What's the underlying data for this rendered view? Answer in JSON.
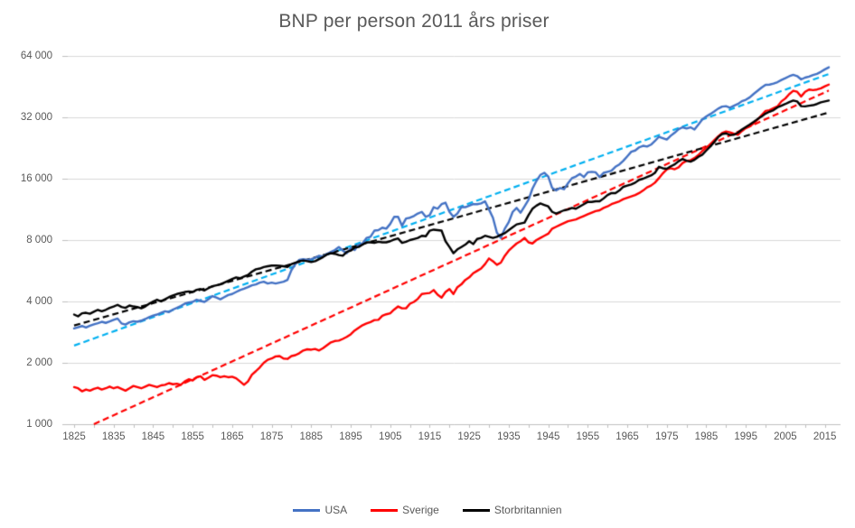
{
  "title": "BNP per person 2011 års priser",
  "legend": {
    "items": [
      {
        "label": "USA",
        "color": "#4472C4"
      },
      {
        "label": "Sverige",
        "color": "#FF0000"
      },
      {
        "label": "Storbritannien",
        "color": "#000000"
      }
    ]
  },
  "colors": {
    "gridline": "#D9D9D9",
    "axis": "#BFBFBF",
    "tick": "#BFBFBF",
    "text": "#595959",
    "usa": "#4472C4",
    "usa_trend": "#00B0F0",
    "sverige": "#FF0000",
    "sverige_trend": "#FF0000",
    "storbritannien": "#000000",
    "storbritannien_trend": "#000000"
  },
  "chart_data": {
    "type": "line",
    "title": "BNP per person 2011 års priser",
    "y_scale": "log2",
    "ylim": [
      1000,
      64000
    ],
    "x_range": [
      1825,
      2016
    ],
    "grid": "horizontal",
    "legend_position": "bottom",
    "y_ticks": [
      {
        "value": 64000,
        "label": "64 000"
      },
      {
        "value": 32000,
        "label": "32 000"
      },
      {
        "value": 16000,
        "label": "16 000"
      },
      {
        "value": 8000,
        "label": "8 000"
      },
      {
        "value": 4000,
        "label": "4 000"
      },
      {
        "value": 2000,
        "label": "2 000"
      },
      {
        "value": 1000,
        "label": "1 000"
      }
    ],
    "x_tick_labels": [
      "1825",
      "1835",
      "1845",
      "1855",
      "1865",
      "1875",
      "1885",
      "1895",
      "1905",
      "1915",
      "1925",
      "1935",
      "1945",
      "1955",
      "1965",
      "1975",
      "1985",
      "1995",
      "2005",
      "2015"
    ],
    "x_minor_tick_step": 5,
    "series": [
      {
        "name": "USA",
        "color": "#4472C4",
        "style": "solid",
        "x_start": 1825,
        "x_step": 1,
        "values": [
          2950,
          2990,
          3030,
          2980,
          3040,
          3090,
          3130,
          3180,
          3140,
          3190,
          3250,
          3300,
          3120,
          3080,
          3160,
          3200,
          3180,
          3220,
          3280,
          3350,
          3410,
          3450,
          3520,
          3580,
          3550,
          3650,
          3720,
          3800,
          3900,
          3950,
          3980,
          4080,
          4020,
          3980,
          4100,
          4250,
          4180,
          4100,
          4200,
          4300,
          4350,
          4450,
          4550,
          4620,
          4700,
          4800,
          4850,
          4950,
          5000,
          4900,
          4950,
          4900,
          4950,
          5000,
          5100,
          5700,
          6100,
          6400,
          6450,
          6400,
          6450,
          6550,
          6700,
          6650,
          6850,
          7000,
          7150,
          7400,
          7100,
          6900,
          7300,
          7150,
          7600,
          7700,
          8200,
          8300,
          8900,
          8950,
          9200,
          9100,
          9600,
          10400,
          10400,
          9400,
          10200,
          10300,
          10500,
          10800,
          11000,
          10400,
          10600,
          11600,
          11400,
          12000,
          12200,
          11000,
          10400,
          10800,
          11600,
          11600,
          11800,
          12000,
          12000,
          12100,
          12400,
          11300,
          10300,
          8700,
          8200,
          9100,
          9800,
          11000,
          11500,
          10900,
          11700,
          12600,
          14300,
          15600,
          16700,
          17100,
          16400,
          14400,
          14000,
          14400,
          14200,
          15200,
          16100,
          16400,
          16900,
          16300,
          17200,
          17300,
          17200,
          16300,
          17100,
          17300,
          17500,
          18300,
          18800,
          19600,
          20600,
          21700,
          22000,
          22800,
          23200,
          23000,
          23500,
          24500,
          25700,
          25300,
          24900,
          26000,
          26900,
          28000,
          28600,
          28200,
          28600,
          27900,
          29500,
          31300,
          32300,
          33200,
          34200,
          35300,
          36100,
          36300,
          35700,
          36500,
          37200,
          38400,
          39000,
          40100,
          41700,
          43200,
          44800,
          46200,
          46300,
          46800,
          47600,
          48800,
          49800,
          50900,
          51700,
          51000,
          49100,
          50100,
          50700,
          51600,
          52300,
          53500,
          55000,
          56300
        ]
      },
      {
        "name": "Sverige",
        "color": "#FF0000",
        "style": "solid",
        "x_start": 1825,
        "x_step": 1,
        "values": [
          1520,
          1500,
          1450,
          1480,
          1460,
          1490,
          1510,
          1480,
          1500,
          1530,
          1500,
          1520,
          1490,
          1460,
          1500,
          1540,
          1520,
          1500,
          1530,
          1560,
          1540,
          1520,
          1550,
          1560,
          1590,
          1570,
          1580,
          1560,
          1620,
          1660,
          1640,
          1700,
          1720,
          1650,
          1690,
          1740,
          1730,
          1700,
          1720,
          1700,
          1710,
          1680,
          1620,
          1560,
          1620,
          1750,
          1820,
          1900,
          2000,
          2070,
          2100,
          2150,
          2160,
          2100,
          2090,
          2160,
          2180,
          2230,
          2300,
          2330,
          2320,
          2340,
          2300,
          2360,
          2440,
          2520,
          2560,
          2570,
          2620,
          2680,
          2760,
          2880,
          2970,
          3060,
          3120,
          3170,
          3240,
          3250,
          3400,
          3460,
          3500,
          3650,
          3780,
          3700,
          3700,
          3900,
          3980,
          4120,
          4350,
          4380,
          4400,
          4550,
          4320,
          4180,
          4450,
          4600,
          4350,
          4700,
          4850,
          5100,
          5250,
          5500,
          5650,
          5800,
          6100,
          6500,
          6300,
          6050,
          6200,
          6700,
          7100,
          7400,
          7700,
          7900,
          8200,
          7800,
          7700,
          8000,
          8200,
          8400,
          8600,
          9100,
          9300,
          9500,
          9700,
          9900,
          10000,
          10100,
          10300,
          10500,
          10700,
          10900,
          11100,
          11200,
          11500,
          11700,
          12000,
          12200,
          12400,
          12700,
          12900,
          13100,
          13300,
          13600,
          14000,
          14500,
          14800,
          15300,
          16100,
          17000,
          17800,
          18000,
          17800,
          18200,
          19100,
          19600,
          19700,
          20200,
          20900,
          21900,
          22700,
          23600,
          24700,
          25800,
          26800,
          27300,
          27000,
          26600,
          26300,
          27400,
          28400,
          28900,
          29900,
          31200,
          32800,
          34400,
          34700,
          35500,
          36200,
          38300,
          39600,
          41600,
          43200,
          42700,
          40500,
          42700,
          43800,
          43500,
          43800,
          44400,
          45400,
          46300
        ]
      },
      {
        "name": "Storbritannien",
        "color": "#000000",
        "style": "solid",
        "x_start": 1825,
        "x_step": 1,
        "values": [
          3450,
          3380,
          3500,
          3520,
          3480,
          3560,
          3640,
          3580,
          3640,
          3720,
          3780,
          3850,
          3760,
          3720,
          3820,
          3780,
          3760,
          3700,
          3780,
          3900,
          4000,
          4080,
          4000,
          4100,
          4200,
          4280,
          4350,
          4400,
          4450,
          4480,
          4450,
          4560,
          4600,
          4530,
          4650,
          4750,
          4800,
          4850,
          4950,
          5050,
          5150,
          5250,
          5200,
          5300,
          5400,
          5600,
          5750,
          5800,
          5900,
          5950,
          6000,
          6000,
          5980,
          5950,
          5900,
          6100,
          6200,
          6300,
          6350,
          6300,
          6250,
          6300,
          6450,
          6600,
          6800,
          6900,
          6850,
          6750,
          6700,
          7000,
          7100,
          7350,
          7400,
          7600,
          7800,
          7800,
          7750,
          7850,
          7800,
          7800,
          7900,
          8050,
          8150,
          7750,
          7850,
          8000,
          8100,
          8200,
          8400,
          8350,
          8900,
          9000,
          8950,
          8900,
          7900,
          7400,
          6900,
          7200,
          7400,
          7600,
          7900,
          7650,
          8100,
          8200,
          8400,
          8300,
          8200,
          8300,
          8500,
          8650,
          8950,
          9250,
          9550,
          9650,
          9750,
          10600,
          11400,
          11800,
          12100,
          11900,
          11700,
          11000,
          10800,
          11000,
          11200,
          11300,
          11500,
          11400,
          11700,
          12000,
          12300,
          12300,
          12400,
          12400,
          12800,
          13300,
          13600,
          13600,
          14000,
          14600,
          14800,
          15000,
          15300,
          15800,
          16000,
          16300,
          16600,
          17100,
          18300,
          18000,
          17900,
          18400,
          18800,
          19500,
          20000,
          19600,
          19400,
          19800,
          20500,
          21000,
          22000,
          23000,
          24200,
          25600,
          26500,
          26700,
          26200,
          26300,
          26900,
          27900,
          28700,
          29500,
          30400,
          31400,
          32300,
          33400,
          34100,
          34700,
          35800,
          36500,
          37200,
          38000,
          38700,
          38300,
          36300,
          36200,
          36500,
          36700,
          37200,
          37900,
          38300,
          38700
        ]
      }
    ],
    "trendlines": [
      {
        "name": "USA-trend",
        "color": "#00B0F0",
        "style": "dashed",
        "fit": "exponential",
        "points": [
          [
            1825,
            2430
          ],
          [
            2016,
            52200
          ]
        ]
      },
      {
        "name": "Sverige-trend",
        "color": "#FF0000",
        "style": "dashed",
        "fit": "exponential",
        "points": [
          [
            1830,
            1000
          ],
          [
            2016,
            43300
          ]
        ]
      },
      {
        "name": "Storbritannien-trend",
        "color": "#000000",
        "style": "dashed",
        "fit": "exponential",
        "points": [
          [
            1825,
            3050
          ],
          [
            2016,
            33800
          ]
        ]
      }
    ]
  }
}
